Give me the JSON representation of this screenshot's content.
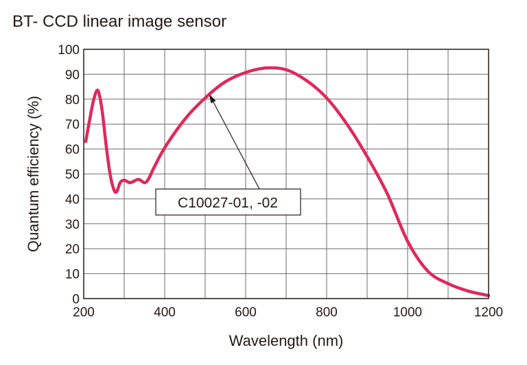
{
  "chart_data": {
    "type": "line",
    "title": "BT- CCD linear image sensor",
    "xlabel": "Wavelength (nm)",
    "ylabel": "Quantum efficiency (%)",
    "xlim": [
      200,
      1200
    ],
    "ylim": [
      0,
      100
    ],
    "xticks": [
      200,
      400,
      600,
      800,
      1000,
      1200
    ],
    "yticks": [
      0,
      10,
      20,
      30,
      40,
      50,
      60,
      70,
      80,
      90,
      100
    ],
    "grid": true,
    "series_color": "#e0285a",
    "series": [
      {
        "x": [
          205,
          215,
          225,
          235,
          245,
          255,
          265,
          275,
          282,
          290,
          300,
          315,
          335,
          350,
          360,
          375,
          400,
          450,
          500,
          550,
          600,
          650,
          700,
          750,
          800,
          850,
          900,
          950,
          1000,
          1050,
          1100,
          1150,
          1200
        ],
        "y": [
          63,
          72,
          80,
          83.5,
          76,
          62,
          50,
          43.5,
          43,
          46.5,
          47.5,
          46.5,
          47.8,
          46.5,
          48,
          53,
          60.5,
          72,
          80.5,
          87,
          90.7,
          92.5,
          91.8,
          87.5,
          80.5,
          70,
          57,
          42,
          23,
          11,
          6,
          3,
          1.2
        ]
      }
    ],
    "annotation": {
      "text": "C10027-01, -02",
      "points_to": {
        "x": 510,
        "y": 82
      }
    }
  }
}
